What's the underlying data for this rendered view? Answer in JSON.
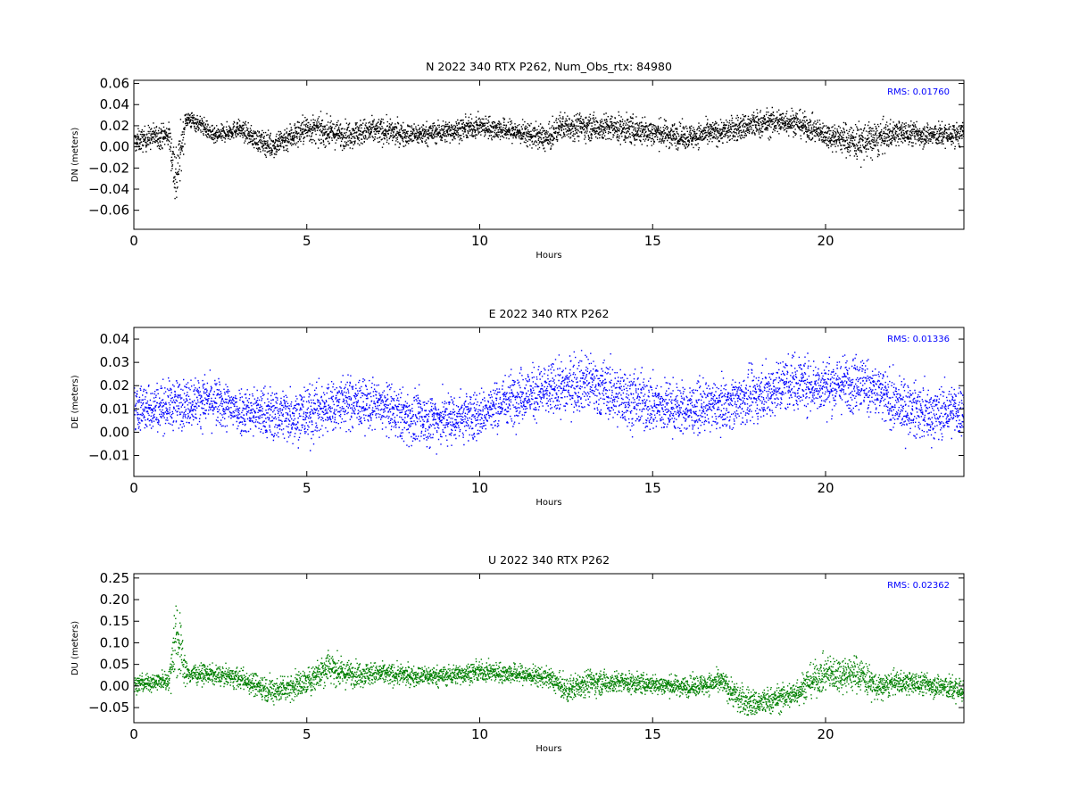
{
  "chart_data": [
    {
      "type": "scatter",
      "title": "N 2022 340 RTX  P262, Num_Obs_rtx: 84980",
      "xlabel": "Hours",
      "ylabel": "DN (meters)",
      "xlim": [
        0,
        24
      ],
      "ylim": [
        -0.078,
        0.063
      ],
      "xticks": [
        0,
        5,
        10,
        15,
        20
      ],
      "xtick_labels": [
        "0",
        "5",
        "10",
        "15",
        "20"
      ],
      "yticks": [
        -0.06,
        -0.04,
        -0.02,
        0.0,
        0.02,
        0.04,
        0.06
      ],
      "ytick_labels": [
        "−0.06",
        "−0.04",
        "−0.02",
        "0.00",
        "0.02",
        "0.04",
        "0.06"
      ],
      "annotation": "RMS:  0.01760",
      "series_color": "#000000",
      "annotation_color": "#0000ff",
      "grid": false,
      "series": [
        {
          "x": [
            0.0,
            0.5,
            1.0,
            1.2,
            1.5,
            2.0,
            2.3,
            3.0,
            3.6,
            4.0,
            5.0,
            6.0,
            7.0,
            8.0,
            9.0,
            10.0,
            11.0,
            12.0,
            12.3,
            13.0,
            14.0,
            14.8,
            16.0,
            17.0,
            18.0,
            19.0,
            20.0,
            21.0,
            21.5,
            22.0,
            23.0,
            24.0
          ],
          "y": [
            0.005,
            0.01,
            0.012,
            -0.03,
            0.028,
            0.02,
            0.01,
            0.018,
            0.006,
            0.002,
            0.018,
            0.012,
            0.016,
            0.012,
            0.015,
            0.02,
            0.015,
            0.008,
            0.02,
            0.02,
            0.018,
            0.015,
            0.01,
            0.015,
            0.022,
            0.025,
            0.012,
            0.005,
            0.008,
            0.014,
            0.012,
            0.012
          ],
          "spread": [
            0.01,
            0.011,
            0.011,
            0.035,
            0.008,
            0.008,
            0.008,
            0.008,
            0.01,
            0.012,
            0.013,
            0.012,
            0.012,
            0.01,
            0.01,
            0.01,
            0.01,
            0.012,
            0.012,
            0.012,
            0.013,
            0.013,
            0.011,
            0.011,
            0.013,
            0.012,
            0.011,
            0.018,
            0.016,
            0.011,
            0.011,
            0.011
          ]
        }
      ]
    },
    {
      "type": "scatter",
      "title": "E 2022 340 RTX  P262",
      "xlabel": "Hours",
      "ylabel": "DE (meters)",
      "xlim": [
        0,
        24
      ],
      "ylim": [
        -0.019,
        0.045
      ],
      "xticks": [
        0,
        5,
        10,
        15,
        20
      ],
      "xtick_labels": [
        "0",
        "5",
        "10",
        "15",
        "20"
      ],
      "yticks": [
        -0.01,
        0.0,
        0.01,
        0.02,
        0.03,
        0.04
      ],
      "ytick_labels": [
        "−0.01",
        "0.00",
        "0.01",
        "0.02",
        "0.03",
        "0.04"
      ],
      "annotation": "RMS:  0.01336",
      "series_color": "#0000ff",
      "annotation_color": "#0000ff",
      "grid": false,
      "series": [
        {
          "x": [
            0.0,
            1.0,
            2.0,
            3.0,
            4.0,
            5.0,
            6.0,
            7.0,
            8.0,
            9.0,
            10.0,
            11.0,
            12.0,
            13.0,
            14.0,
            15.0,
            16.0,
            17.0,
            18.0,
            19.0,
            20.0,
            21.0,
            22.0,
            23.0,
            24.0
          ],
          "y": [
            0.01,
            0.012,
            0.014,
            0.01,
            0.008,
            0.008,
            0.013,
            0.012,
            0.006,
            0.006,
            0.008,
            0.016,
            0.018,
            0.022,
            0.016,
            0.012,
            0.01,
            0.012,
            0.016,
            0.022,
            0.02,
            0.022,
            0.012,
            0.008,
            0.01
          ],
          "spread": [
            0.01,
            0.01,
            0.01,
            0.01,
            0.011,
            0.012,
            0.011,
            0.01,
            0.011,
            0.011,
            0.01,
            0.011,
            0.011,
            0.012,
            0.012,
            0.012,
            0.01,
            0.01,
            0.011,
            0.012,
            0.011,
            0.012,
            0.011,
            0.011,
            0.011
          ]
        }
      ]
    },
    {
      "type": "scatter",
      "title": "U 2022 340 RTX  P262",
      "xlabel": "Hours",
      "ylabel": "DU (meters)",
      "xlim": [
        0,
        24
      ],
      "ylim": [
        -0.085,
        0.26
      ],
      "xticks": [
        0,
        5,
        10,
        15,
        20
      ],
      "xtick_labels": [
        "0",
        "5",
        "10",
        "15",
        "20"
      ],
      "yticks": [
        -0.05,
        0.0,
        0.05,
        0.1,
        0.15,
        0.2,
        0.25
      ],
      "ytick_labels": [
        "−0.05",
        "0.00",
        "0.05",
        "0.10",
        "0.15",
        "0.20",
        "0.25"
      ],
      "annotation": "RMS:  0.02362",
      "series_color": "#008000",
      "annotation_color": "#0000ff",
      "grid": false,
      "series": [
        {
          "x": [
            0.0,
            1.0,
            1.2,
            1.5,
            2.0,
            3.0,
            4.0,
            4.5,
            5.0,
            5.6,
            6.0,
            7.0,
            8.0,
            9.0,
            10.0,
            11.0,
            12.0,
            12.5,
            13.0,
            14.0,
            15.0,
            16.0,
            17.0,
            17.5,
            18.0,
            19.0,
            19.5,
            20.0,
            21.0,
            21.5,
            22.0,
            23.0,
            24.0
          ],
          "y": [
            0.005,
            0.015,
            0.13,
            0.03,
            0.03,
            0.02,
            -0.01,
            0.0,
            0.01,
            0.05,
            0.03,
            0.03,
            0.025,
            0.025,
            0.035,
            0.03,
            0.02,
            -0.01,
            0.01,
            0.01,
            0.005,
            0.0,
            0.01,
            -0.03,
            -0.04,
            -0.02,
            0.01,
            0.03,
            0.03,
            -0.005,
            0.01,
            0.005,
            -0.01
          ],
          "spread": [
            0.02,
            0.02,
            0.11,
            0.025,
            0.02,
            0.022,
            0.03,
            0.03,
            0.03,
            0.04,
            0.03,
            0.025,
            0.022,
            0.022,
            0.022,
            0.022,
            0.022,
            0.028,
            0.03,
            0.024,
            0.022,
            0.022,
            0.025,
            0.035,
            0.03,
            0.03,
            0.035,
            0.04,
            0.04,
            0.03,
            0.025,
            0.025,
            0.03
          ]
        }
      ]
    }
  ]
}
